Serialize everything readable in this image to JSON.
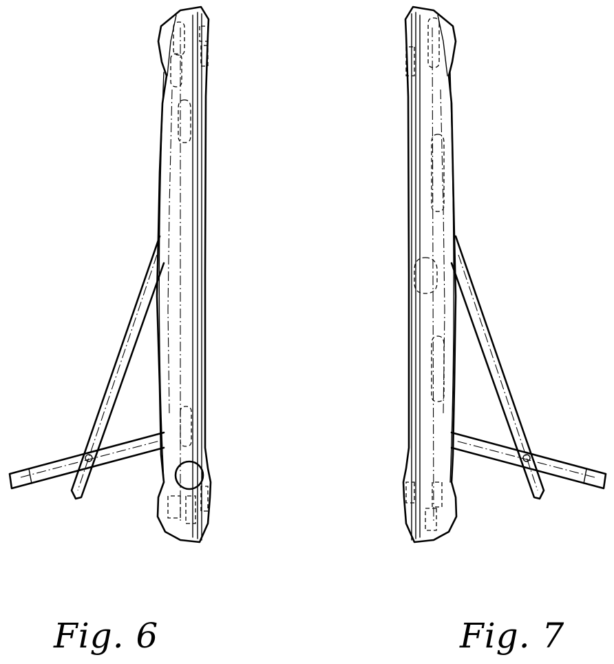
{
  "figures": [
    {
      "label": "Fig. 6"
    },
    {
      "label": "Fig. 7"
    }
  ],
  "colors": {
    "line": "#000000",
    "background": "#ffffff"
  }
}
